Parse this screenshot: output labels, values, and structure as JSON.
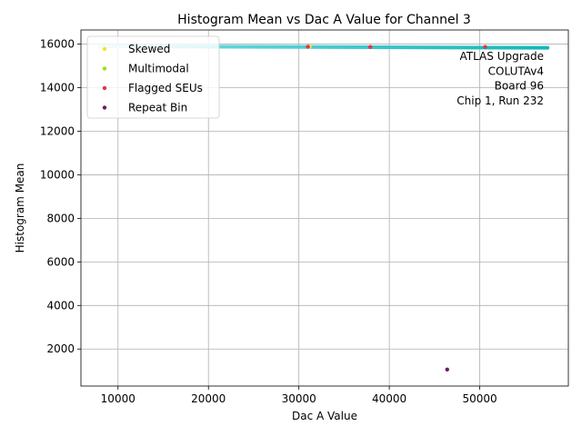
{
  "chart_data": {
    "type": "scatter",
    "title": "Histogram Mean vs Dac A Value for Channel 3",
    "xlabel": "Dac A Value",
    "ylabel": "Histogram Mean",
    "xlim": [
      5900,
      59800
    ],
    "ylim": [
      300,
      16650
    ],
    "xticks": [
      10000,
      20000,
      30000,
      40000,
      50000
    ],
    "yticks": [
      2000,
      4000,
      6000,
      8000,
      10000,
      12000,
      14000,
      16000
    ],
    "grid": true,
    "legend_position": "top-left",
    "annotation_lines": [
      "ATLAS Upgrade",
      "COLUTAv4",
      "Board 96",
      "Chip 1, Run 232"
    ],
    "series": [
      {
        "role": "main",
        "color_start": "#c8f0f5",
        "color_end": "#12b7ba",
        "x_start": 8000,
        "x_end": 57500,
        "y_start": 15900,
        "y_end": 15830
      },
      {
        "name": "Skewed",
        "color": "#e8e82a",
        "points": [
          [
            31200,
            15880
          ]
        ]
      },
      {
        "name": "Multimodal",
        "color": "#9be01c",
        "points": []
      },
      {
        "name": "Flagged SEUs",
        "color": "#e0344a",
        "points": [
          [
            31000,
            15880
          ],
          [
            37900,
            15870
          ],
          [
            50600,
            15870
          ]
        ]
      },
      {
        "name": "Repeat Bin",
        "color": "#6a1a6e",
        "points": [
          [
            46400,
            1060
          ]
        ]
      }
    ]
  }
}
